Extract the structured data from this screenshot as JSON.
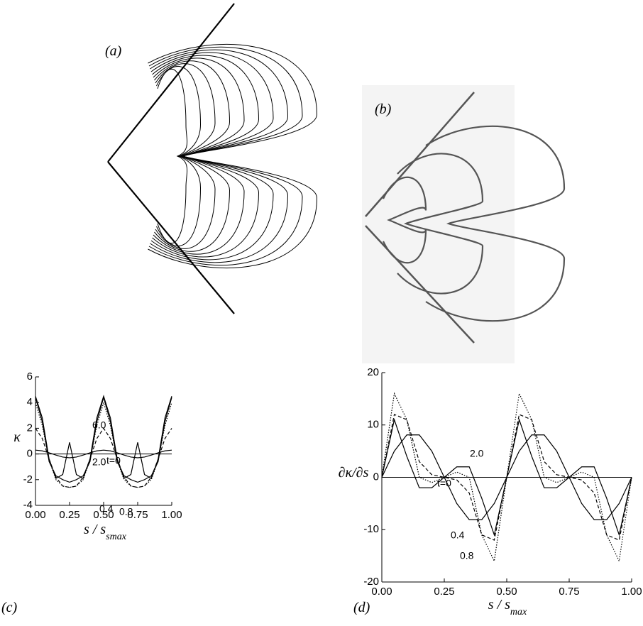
{
  "panels": [
    {
      "label": "(a)"
    },
    {
      "label": "(b)"
    }
  ],
  "chart_data": [
    {
      "type": "line",
      "label": "(c)",
      "ylabel": "κ",
      "xlabel": {
        "text": "s / s",
        "sub": "smax"
      },
      "xlim": [
        0,
        1
      ],
      "ylim": [
        -4,
        6
      ],
      "xticks": [
        {
          "value": 0,
          "label": "0.00"
        },
        {
          "value": 0.25,
          "label": "0.25"
        },
        {
          "value": 0.5,
          "label": "0.50"
        },
        {
          "value": 0.75,
          "label": "0.75"
        },
        {
          "value": 1,
          "label": "1.00"
        }
      ],
      "yticks": [
        -4,
        -2,
        0,
        2,
        4,
        6
      ],
      "x": [
        0,
        0.05,
        0.1,
        0.15,
        0.2,
        0.25,
        0.3,
        0.35,
        0.4,
        0.45,
        0.5,
        0.55,
        0.6,
        0.65,
        0.7,
        0.75,
        0.8,
        0.85,
        0.9,
        0.95,
        1
      ],
      "series": [
        {
          "name": "t=0",
          "color": "#000000",
          "style": "solid",
          "values": [
            0.3,
            0.24,
            0.09,
            -0.09,
            -0.24,
            -0.3,
            -0.24,
            -0.09,
            0.09,
            0.24,
            0.3,
            0.24,
            0.09,
            -0.09,
            -0.24,
            -0.3,
            -0.24,
            -0.09,
            0.09,
            0.24,
            0.3
          ]
        },
        {
          "name": "0.4",
          "color": "#000000",
          "style": "dashed",
          "values": [
            2.0,
            1.2,
            -0.4,
            -1.8,
            -2.5,
            -2.6,
            -2.5,
            -1.8,
            -0.4,
            1.2,
            2.0,
            1.2,
            -0.4,
            -1.8,
            -2.5,
            -2.6,
            -2.5,
            -1.8,
            -0.4,
            1.2,
            2.0
          ]
        },
        {
          "name": "0.8",
          "color": "#000000",
          "style": "dotted",
          "values": [
            4.0,
            2.2,
            -0.5,
            -2.0,
            -2.5,
            -2.6,
            -2.5,
            -2.0,
            -0.5,
            2.2,
            4.0,
            2.2,
            -0.5,
            -2.0,
            -2.5,
            -2.6,
            -2.5,
            -2.0,
            -0.5,
            2.2,
            4.0
          ]
        },
        {
          "name": "2.0",
          "color": "#000000",
          "style": "solid",
          "values": [
            4.4,
            2.5,
            -0.6,
            -1.7,
            -2.0,
            -2.2,
            -2.0,
            -1.7,
            -0.6,
            2.5,
            4.4,
            2.5,
            -0.6,
            -1.7,
            -2.0,
            -2.2,
            -2.0,
            -1.7,
            -0.6,
            2.5,
            4.4
          ]
        },
        {
          "name": "6.0",
          "color": "#000000",
          "style": "solid",
          "values": [
            4.5,
            2.8,
            -0.4,
            -1.9,
            -1.6,
            0.9,
            -1.6,
            -1.9,
            -0.4,
            2.8,
            4.5,
            2.8,
            -0.4,
            -1.9,
            -1.6,
            0.9,
            -1.6,
            -1.9,
            -0.4,
            2.8,
            4.5
          ]
        }
      ]
    },
    {
      "type": "line",
      "label": "(d)",
      "ylabel": "∂κ/∂s",
      "xlabel": {
        "text": "s / s",
        "sub": "max"
      },
      "xlim": [
        0,
        1
      ],
      "ylim": [
        -20,
        20
      ],
      "xticks": [
        {
          "value": 0,
          "label": "0.00"
        },
        {
          "value": 0.25,
          "label": "0.25"
        },
        {
          "value": 0.5,
          "label": "0.50"
        },
        {
          "value": 0.75,
          "label": "0.75"
        },
        {
          "value": 1,
          "label": "1.00"
        }
      ],
      "yticks": [
        -20,
        -10,
        0,
        10,
        20
      ],
      "x": [
        0,
        0.05,
        0.1,
        0.15,
        0.2,
        0.25,
        0.3,
        0.35,
        0.4,
        0.45,
        0.5,
        0.55,
        0.6,
        0.65,
        0.7,
        0.75,
        0.8,
        0.85,
        0.9,
        0.95,
        1
      ],
      "series": [
        {
          "name": "t=0",
          "color": "#000000",
          "style": "solid",
          "values": [
            0,
            5,
            8.1,
            8.1,
            5,
            0,
            -5,
            -8.1,
            -8.1,
            -5,
            0,
            5,
            8.1,
            8.1,
            5,
            0,
            -5,
            -8.1,
            -8.1,
            -5,
            0
          ]
        },
        {
          "name": "0.4",
          "color": "#000000",
          "style": "dashed",
          "values": [
            0,
            12,
            11,
            3,
            0.5,
            0,
            -0.5,
            -3,
            -11,
            -12,
            0,
            12,
            11,
            3,
            0.5,
            0,
            -0.5,
            -3,
            -11,
            -12,
            0
          ]
        },
        {
          "name": "0.8",
          "color": "#000000",
          "style": "dotted",
          "values": [
            0,
            16,
            11,
            0,
            -1,
            0,
            1,
            0,
            -11,
            -16,
            0,
            16,
            11,
            0,
            -1,
            0,
            1,
            0,
            -11,
            -16,
            0
          ]
        },
        {
          "name": "2.0",
          "color": "#000000",
          "style": "solid",
          "values": [
            0,
            11,
            4,
            -2,
            -2,
            0,
            2,
            2,
            -4,
            -11,
            0,
            11,
            4,
            -2,
            -2,
            0,
            2,
            2,
            -4,
            -11,
            0
          ]
        }
      ]
    }
  ]
}
